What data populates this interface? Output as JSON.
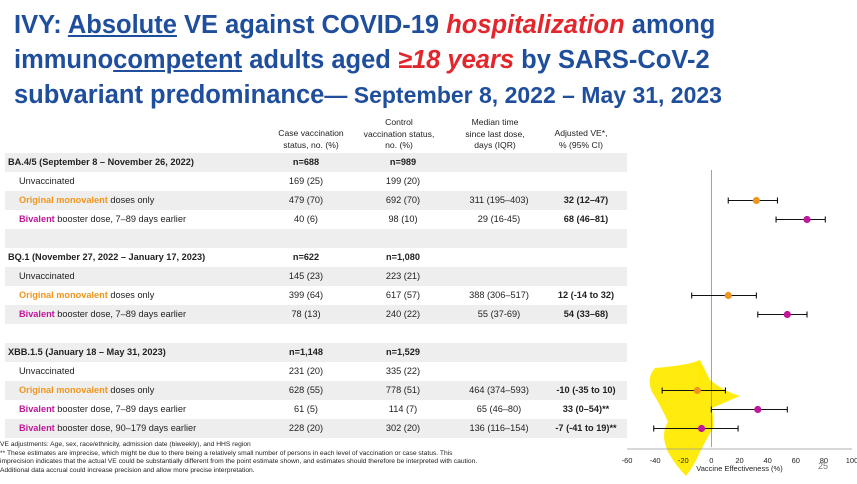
{
  "title": {
    "line1_prefix": "IVY: ",
    "line1_absolute": "Absolute",
    "line1_mid": " VE against COVID-19 ",
    "line1_hosp": "hospitalization",
    "line1_suffix": " among",
    "line2_prefix": "immuno",
    "line2_competent": "competent",
    "line2_mid": " adults aged ",
    "line2_age": "≥18 years",
    "line2_suffix": " by SARS-CoV-2",
    "line3_main": "subvariant predominance",
    "line3_dates": "— September 8, 2022 – May 31, 2023"
  },
  "headers": {
    "case": "Case vaccination\nstatus, no. (%)",
    "control": "Control\nvaccination status,\nno. (%)",
    "median": "Median time\nsince last dose,\ndays (IQR)",
    "ve": "Adjusted VE*,\n% (95% CI)"
  },
  "rows": [
    {
      "type": "section",
      "label": "BA.4/5 (September 8 – November 26, 2022)",
      "case": "n=688",
      "control": "n=989"
    },
    {
      "type": "data",
      "label": "Unvaccinated",
      "case": "169 (25)",
      "control": "199 (20)",
      "median": "",
      "ve": ""
    },
    {
      "type": "data",
      "label_colored": "Original monovalent",
      "label_rest": " doses only",
      "color": "orange",
      "case": "479 (70)",
      "control": "692 (70)",
      "median": "311 (195–403)",
      "ve": "32 (12–47)"
    },
    {
      "type": "data",
      "label_colored": "Bivalent",
      "label_rest": " booster dose, 7–89 days earlier",
      "color": "magenta",
      "case": "40 (6)",
      "control": "98 (10)",
      "median": "29 (16-45)",
      "ve": "68 (46–81)"
    },
    {
      "type": "blank"
    },
    {
      "type": "section",
      "label": "BQ.1 (November 27, 2022 – January 17, 2023)",
      "case": "n=622",
      "control": "n=1,080"
    },
    {
      "type": "data",
      "label": "Unvaccinated",
      "case": "145 (23)",
      "control": "223 (21)",
      "median": "",
      "ve": ""
    },
    {
      "type": "data",
      "label_colored": "Original monovalent",
      "label_rest": " doses only",
      "color": "orange",
      "case": "399 (64)",
      "control": "617 (57)",
      "median": "388 (306–517)",
      "ve": "12 (-14 to 32)"
    },
    {
      "type": "data",
      "label_colored": "Bivalent",
      "label_rest": " booster dose, 7–89 days earlier",
      "color": "magenta",
      "case": "78 (13)",
      "control": "240 (22)",
      "median": "55 (37-69)",
      "ve": "54 (33–68)"
    },
    {
      "type": "blank"
    },
    {
      "type": "section",
      "label": "XBB.1.5 (January 18 – May 31, 2023)",
      "case": "n=1,148",
      "control": "n=1,529"
    },
    {
      "type": "data",
      "label": "Unvaccinated",
      "case": "231 (20)",
      "control": "335 (22)",
      "median": "",
      "ve": ""
    },
    {
      "type": "data",
      "label_colored": "Original monovalent",
      "label_rest": " doses only",
      "color": "orange",
      "case": "628 (55)",
      "control": "778 (51)",
      "median": "464 (374–593)",
      "ve": "-10 (-35 to 10)"
    },
    {
      "type": "data",
      "label_colored": "Bivalent",
      "label_rest": " booster dose, 7–89 days earlier",
      "color": "magenta",
      "case": "61 (5)",
      "control": "114 (7)",
      "median": "65 (46–80)",
      "ve": "33 (0–54)**"
    },
    {
      "type": "data",
      "label_colored": "Bivalent",
      "label_rest": " booster dose, 90–179 days earlier",
      "color": "magenta",
      "case": "228 (20)",
      "control": "302 (20)",
      "median": "136 (116–154)",
      "ve": "-7 (-41 to 19)**"
    }
  ],
  "chart_data": {
    "type": "scatter",
    "xlabel": "Vaccine Effectiveness (%)",
    "xlim": [
      -60,
      100
    ],
    "ticks": [
      "-60",
      "-40",
      "-20",
      "0",
      "20",
      "40",
      "60",
      "80",
      "100"
    ],
    "points": [
      {
        "row": 2,
        "est": 32,
        "lo": 12,
        "hi": 47,
        "color": "#f0961e"
      },
      {
        "row": 3,
        "est": 68,
        "lo": 46,
        "hi": 81,
        "color": "#c0179b"
      },
      {
        "row": 7,
        "est": 12,
        "lo": -14,
        "hi": 32,
        "color": "#f0961e"
      },
      {
        "row": 8,
        "est": 54,
        "lo": 33,
        "hi": 68,
        "color": "#c0179b"
      },
      {
        "row": 12,
        "est": -10,
        "lo": -35,
        "hi": 10,
        "color": "#f0961e"
      },
      {
        "row": 13,
        "est": 33,
        "lo": 0,
        "hi": 54,
        "color": "#c0179b"
      },
      {
        "row": 14,
        "est": -7,
        "lo": -41,
        "hi": 19,
        "color": "#c0179b"
      }
    ]
  },
  "footnotes": [
    "VE adjustments: Age, sex, race/ethnicity, admission date (biweekly), and HHS region",
    "** These estimates are imprecise, which might be due to there being a relatively small number of persons in each level of vaccination or case status. This",
    "imprecision indicates that the actual VE could be substantially different from the point estimate shown, and estimates should therefore be interpreted with caution.",
    "Additional data accrual could increase precision and allow more precise interpretation."
  ],
  "page_number": "25",
  "colors": {
    "title_blue": "#1f4e9c",
    "accent_red": "#e3262c",
    "orange": "#f0961e",
    "magenta": "#c0179b",
    "highlight": "#ffea00"
  }
}
